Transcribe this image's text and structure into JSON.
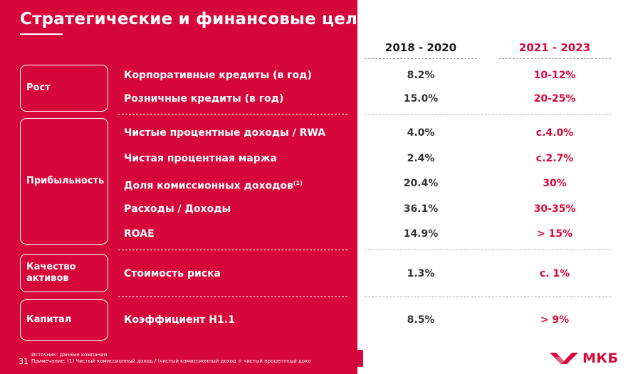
{
  "title": "Стратегические и финансовые цели",
  "columns": {
    "period1": "2018 - 2020",
    "period2": "2021 - 2023"
  },
  "categories": {
    "growth": "Рост",
    "profitability": "Прибыльность",
    "asset_quality": "Качество активов",
    "capital": "Капитал"
  },
  "rows": [
    {
      "metric": "Корпоративные кредиты (в год)",
      "v1": "8.2%",
      "v2": "10-12%"
    },
    {
      "metric": "Розничные кредиты (в год)",
      "v1": "15.0%",
      "v2": "20-25%"
    },
    {
      "metric": "Чистые процентные доходы / RWA",
      "v1": "4.0%",
      "v2": "c.4.0%"
    },
    {
      "metric": "Чистая процентная маржа",
      "v1": "2.4%",
      "v2": "c.2.7%"
    },
    {
      "metric": "Доля комиссионных доходов",
      "sup": "(1)",
      "v1": "20.4%",
      "v2": "30%"
    },
    {
      "metric": "Расходы / Доходы",
      "v1": "36.1%",
      "v2": "30-35%"
    },
    {
      "metric": "ROAE",
      "v1": "14.9%",
      "v2": "> 15%"
    },
    {
      "metric": "Стоимость риска",
      "v1": "1.3%",
      "v2": "c. 1%"
    },
    {
      "metric": "Коэффициент Н1.1",
      "v1": "8.5%",
      "v2": "> 9%"
    }
  ],
  "footer": {
    "page_number": "31",
    "source": "Источник: данные компании.",
    "note": "Примечание: (1) Чистый комиссионный доход / (чистый комиссионный доход + чистый процентный дохо"
  },
  "logo": {
    "text": "МКБ",
    "icon": "mkb-logo-icon",
    "color": "#d6083b"
  },
  "colors": {
    "accent": "#d6083b",
    "text_dark": "#333333"
  }
}
